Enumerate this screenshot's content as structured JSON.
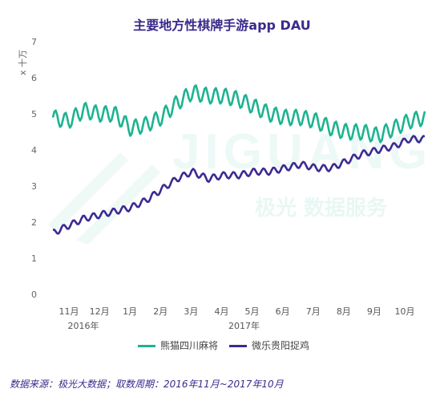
{
  "title": "主要地方性棋牌手游app DAU",
  "source": "数据来源：极光大数据；取数周期：2016年11月~2017年10月",
  "watermark": {
    "brand_en": "JIGUANG",
    "brand_cn": "极光  数据服务"
  },
  "chart_data": {
    "type": "line",
    "title": "主要地方性棋牌手游app DAU",
    "ylabel": "x 十万",
    "ylim": [
      0,
      7
    ],
    "yticks": [
      "0",
      "1",
      "2",
      "3",
      "4",
      "5",
      "6",
      "7"
    ],
    "month_labels": [
      "11月",
      "12月",
      "1月",
      "2月",
      "3月",
      "4月",
      "5月",
      "6月",
      "7月",
      "8月",
      "9月",
      "10月"
    ],
    "year_labels": [
      "2016年",
      "2017年"
    ],
    "grid": false,
    "legend_position": "bottom",
    "series": [
      {
        "name": "熊猫四川麻将",
        "color": "#1db391",
        "values": [
          4.9,
          4.8,
          5.1,
          5.0,
          5.0,
          4.6,
          4.7,
          4.9,
          5.3,
          5.6,
          5.5,
          5.5,
          5.4,
          5.2,
          5.0,
          4.9,
          4.9,
          4.8,
          4.6,
          4.5,
          4.5,
          4.4,
          4.6,
          4.8,
          4.9
        ]
      },
      {
        "name": "微乐贵阳捉鸡",
        "color": "#3d2a92",
        "values": [
          1.7,
          1.9,
          2.1,
          2.2,
          2.3,
          2.4,
          2.6,
          2.9,
          3.2,
          3.4,
          3.2,
          3.3,
          3.3,
          3.4,
          3.4,
          3.5,
          3.6,
          3.5,
          3.5,
          3.7,
          3.9,
          4.0,
          4.1,
          4.3,
          4.3
        ]
      }
    ]
  }
}
